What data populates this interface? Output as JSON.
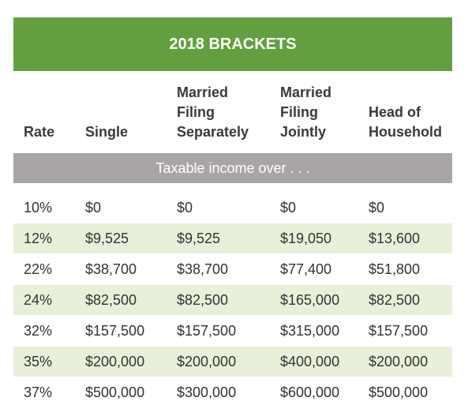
{
  "title": "2018 BRACKETS",
  "table": {
    "columns": [
      [
        "Rate"
      ],
      [
        "Single"
      ],
      [
        "Married",
        "Filing",
        "Separately"
      ],
      [
        "Married",
        "Filing",
        "Jointly"
      ],
      [
        "Head of",
        "Household"
      ]
    ],
    "subheader": "Taxable income over . . .",
    "rows": [
      [
        "10%",
        "$0",
        "$0",
        "$0",
        "$0"
      ],
      [
        "12%",
        "$9,525",
        "$9,525",
        "$19,050",
        "$13,600"
      ],
      [
        "22%",
        "$38,700",
        "$38,700",
        "$77,400",
        "$51,800"
      ],
      [
        "24%",
        "$82,500",
        "$82,500",
        "$165,000",
        "$82,500"
      ],
      [
        "32%",
        "$157,500",
        "$157,500",
        "$315,000",
        "$157,500"
      ],
      [
        "35%",
        "$200,000",
        "$200,000",
        "$400,000",
        "$200,000"
      ],
      [
        "37%",
        "$500,000",
        "$300,000",
        "$600,000",
        "$500,000"
      ]
    ]
  }
}
